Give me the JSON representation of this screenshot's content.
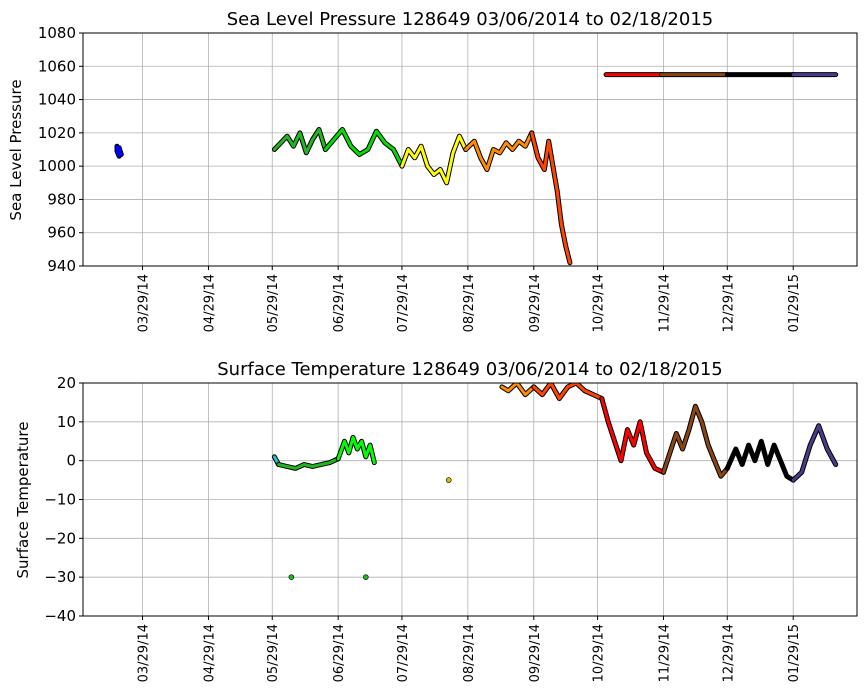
{
  "chart_data": [
    {
      "type": "line",
      "title": "Sea Level Pressure 128649  03/06/2014 to 02/18/2015",
      "ylabel": "Sea Level Pressure",
      "xlabel": "",
      "ylim": [
        940,
        1080
      ],
      "yticks": [
        940,
        960,
        980,
        1000,
        1020,
        1040,
        1060,
        1080
      ],
      "xlim": [
        "2014-03-01",
        "2015-02-28"
      ],
      "xticks": [
        {
          "date": "2014-03-29",
          "label": "03/29/14"
        },
        {
          "date": "2014-04-29",
          "label": "04/29/14"
        },
        {
          "date": "2014-05-29",
          "label": "05/29/14"
        },
        {
          "date": "2014-06-29",
          "label": "06/29/14"
        },
        {
          "date": "2014-07-29",
          "label": "07/29/14"
        },
        {
          "date": "2014-08-29",
          "label": "08/29/14"
        },
        {
          "date": "2014-09-29",
          "label": "09/29/14"
        },
        {
          "date": "2014-10-29",
          "label": "10/29/14"
        },
        {
          "date": "2014-11-29",
          "label": "11/29/14"
        },
        {
          "date": "2014-12-29",
          "label": "12/29/14"
        },
        {
          "date": "2015-01-29",
          "label": "01/29/15"
        }
      ],
      "grid": true,
      "series": [
        {
          "color": "#0000ff",
          "points": [
            [
              "2014-03-17",
              1012
            ],
            [
              "2014-03-17",
              1009
            ],
            [
              "2014-03-18",
              1006
            ],
            [
              "2014-03-18",
              1011
            ],
            [
              "2014-03-19",
              1007
            ]
          ]
        },
        {
          "color": "#22b422",
          "points": [
            [
              "2014-05-30",
              1010
            ],
            [
              "2014-06-02",
              1014
            ],
            [
              "2014-06-05",
              1018
            ],
            [
              "2014-06-08",
              1012
            ],
            [
              "2014-06-11",
              1020
            ],
            [
              "2014-06-14",
              1008
            ],
            [
              "2014-06-17",
              1016
            ],
            [
              "2014-06-20",
              1022
            ],
            [
              "2014-06-23",
              1010
            ]
          ]
        },
        {
          "color": "#00dd00",
          "points": [
            [
              "2014-06-23",
              1010
            ],
            [
              "2014-06-27",
              1016
            ],
            [
              "2014-07-01",
              1022
            ],
            [
              "2014-07-05",
              1012
            ],
            [
              "2014-07-09",
              1007
            ],
            [
              "2014-07-13",
              1010
            ],
            [
              "2014-07-17",
              1021
            ],
            [
              "2014-07-21",
              1014
            ],
            [
              "2014-07-25",
              1010
            ],
            [
              "2014-07-29",
              1000
            ]
          ]
        },
        {
          "color": "#ffff00",
          "points": [
            [
              "2014-07-29",
              1000
            ],
            [
              "2014-08-01",
              1010
            ],
            [
              "2014-08-04",
              1005
            ],
            [
              "2014-08-07",
              1012
            ],
            [
              "2014-08-10",
              1000
            ],
            [
              "2014-08-13",
              995
            ],
            [
              "2014-08-16",
              998
            ],
            [
              "2014-08-19",
              990
            ],
            [
              "2014-08-22",
              1008
            ],
            [
              "2014-08-25",
              1018
            ],
            [
              "2014-08-28",
              1010
            ]
          ]
        },
        {
          "color": "#ff8c00",
          "points": [
            [
              "2014-08-28",
              1010
            ],
            [
              "2014-09-01",
              1015
            ],
            [
              "2014-09-04",
              1005
            ],
            [
              "2014-09-07",
              998
            ],
            [
              "2014-09-10",
              1010
            ],
            [
              "2014-09-13",
              1008
            ],
            [
              "2014-09-16",
              1014
            ],
            [
              "2014-09-19",
              1010
            ],
            [
              "2014-09-22",
              1015
            ],
            [
              "2014-09-25",
              1012
            ],
            [
              "2014-09-28",
              1020
            ]
          ]
        },
        {
          "color": "#ff4500",
          "points": [
            [
              "2014-09-28",
              1020
            ],
            [
              "2014-10-01",
              1005
            ],
            [
              "2014-10-04",
              998
            ],
            [
              "2014-10-06",
              1015
            ],
            [
              "2014-10-08",
              1000
            ],
            [
              "2014-10-10",
              985
            ],
            [
              "2014-10-12",
              965
            ],
            [
              "2014-10-14",
              952
            ],
            [
              "2014-10-16",
              942
            ]
          ]
        },
        {
          "color": "#ff0000",
          "points": [
            [
              "2014-11-02",
              1055
            ],
            [
              "2014-11-28",
              1055
            ]
          ]
        },
        {
          "color": "#8b4513",
          "points": [
            [
              "2014-11-28",
              1055
            ],
            [
              "2014-12-12",
              1055
            ],
            [
              "2014-12-18",
              1055
            ],
            [
              "2014-12-29",
              1055
            ]
          ]
        },
        {
          "color": "#000000",
          "points": [
            [
              "2014-12-29",
              1055
            ],
            [
              "2015-01-29",
              1055
            ]
          ]
        },
        {
          "color": "#483d8b",
          "points": [
            [
              "2015-01-29",
              1055
            ],
            [
              "2015-02-18",
              1055
            ]
          ]
        }
      ]
    },
    {
      "type": "line",
      "title": "Surface Temperature 128649  03/06/2014 to 02/18/2015",
      "ylabel": "Surface Temperature",
      "xlabel": "",
      "ylim": [
        -40,
        20
      ],
      "yticks": [
        -40,
        -30,
        -20,
        -10,
        0,
        10,
        20
      ],
      "xlim": [
        "2014-03-01",
        "2015-02-28"
      ],
      "xticks": [
        {
          "date": "2014-03-29",
          "label": "03/29/14"
        },
        {
          "date": "2014-04-29",
          "label": "04/29/14"
        },
        {
          "date": "2014-05-29",
          "label": "05/29/14"
        },
        {
          "date": "2014-06-29",
          "label": "06/29/14"
        },
        {
          "date": "2014-07-29",
          "label": "07/29/14"
        },
        {
          "date": "2014-08-29",
          "label": "08/29/14"
        },
        {
          "date": "2014-09-29",
          "label": "09/29/14"
        },
        {
          "date": "2014-10-29",
          "label": "10/29/14"
        },
        {
          "date": "2014-11-29",
          "label": "11/29/14"
        },
        {
          "date": "2014-12-29",
          "label": "12/29/14"
        },
        {
          "date": "2015-01-29",
          "label": "01/29/15"
        }
      ],
      "grid": true,
      "series": [
        {
          "color": "#20c0c0",
          "points": [
            [
              "2014-05-30",
              1
            ],
            [
              "2014-06-01",
              -1
            ]
          ]
        },
        {
          "color": "#22b422",
          "points": [
            [
              "2014-06-01",
              -1
            ],
            [
              "2014-06-05",
              -1.5
            ],
            [
              "2014-06-09",
              -2
            ],
            [
              "2014-06-13",
              -1
            ],
            [
              "2014-06-17",
              -1.5
            ],
            [
              "2014-06-21",
              -1
            ],
            [
              "2014-06-25",
              -0.5
            ],
            [
              "2014-06-29",
              0.5
            ]
          ]
        },
        {
          "color": "#00ff00",
          "points": [
            [
              "2014-06-29",
              0.5
            ],
            [
              "2014-07-02",
              5
            ],
            [
              "2014-07-04",
              2
            ],
            [
              "2014-07-06",
              6
            ],
            [
              "2014-07-08",
              3
            ],
            [
              "2014-07-10",
              5
            ],
            [
              "2014-07-12",
              1
            ],
            [
              "2014-07-14",
              4
            ],
            [
              "2014-07-16",
              -0.5
            ]
          ]
        },
        {
          "color": "#ff8c00",
          "points": [
            [
              "2014-09-14",
              19
            ],
            [
              "2014-09-17",
              18
            ],
            [
              "2014-09-21",
              20
            ],
            [
              "2014-09-25",
              17
            ],
            [
              "2014-09-29",
              19
            ]
          ]
        },
        {
          "color": "#ff4500",
          "points": [
            [
              "2014-09-29",
              19
            ],
            [
              "2014-10-03",
              17
            ],
            [
              "2014-10-07",
              20
            ],
            [
              "2014-10-11",
              16
            ],
            [
              "2014-10-15",
              19
            ],
            [
              "2014-10-19",
              20
            ],
            [
              "2014-10-23",
              18
            ],
            [
              "2014-10-27",
              17
            ],
            [
              "2014-10-31",
              16
            ]
          ]
        },
        {
          "color": "#ff0000",
          "points": [
            [
              "2014-10-31",
              16
            ],
            [
              "2014-11-03",
              10
            ],
            [
              "2014-11-06",
              5
            ],
            [
              "2014-11-09",
              0
            ],
            [
              "2014-11-12",
              8
            ],
            [
              "2014-11-15",
              4
            ],
            [
              "2014-11-18",
              10
            ],
            [
              "2014-11-21",
              2
            ],
            [
              "2014-11-25",
              -2
            ],
            [
              "2014-11-29",
              -3
            ]
          ]
        },
        {
          "color": "#8b4513",
          "points": [
            [
              "2014-11-29",
              -3
            ],
            [
              "2014-12-02",
              2
            ],
            [
              "2014-12-05",
              7
            ],
            [
              "2014-12-08",
              3
            ],
            [
              "2014-12-11",
              8
            ],
            [
              "2014-12-14",
              14
            ],
            [
              "2014-12-17",
              10
            ],
            [
              "2014-12-20",
              4
            ],
            [
              "2014-12-23",
              0
            ],
            [
              "2014-12-26",
              -4
            ],
            [
              "2014-12-29",
              -2
            ]
          ]
        },
        {
          "color": "#000000",
          "points": [
            [
              "2014-12-29",
              -2
            ],
            [
              "2015-01-02",
              3
            ],
            [
              "2015-01-05",
              -1
            ],
            [
              "2015-01-08",
              4
            ],
            [
              "2015-01-11",
              0
            ],
            [
              "2015-01-14",
              5
            ],
            [
              "2015-01-17",
              -1
            ],
            [
              "2015-01-20",
              4
            ],
            [
              "2015-01-23",
              0
            ],
            [
              "2015-01-26",
              -4
            ],
            [
              "2015-01-29",
              -5
            ]
          ]
        },
        {
          "color": "#483d8b",
          "points": [
            [
              "2015-01-29",
              -5
            ],
            [
              "2015-02-02",
              -3
            ],
            [
              "2015-02-06",
              4
            ],
            [
              "2015-02-10",
              9
            ],
            [
              "2015-02-14",
              3
            ],
            [
              "2015-02-18",
              -1
            ]
          ]
        }
      ],
      "points": [
        {
          "color": "#22b422",
          "date": "2014-06-07",
          "value": -30
        },
        {
          "color": "#22b422",
          "date": "2014-07-12",
          "value": -30
        },
        {
          "color": "#c8c800",
          "date": "2014-08-20",
          "value": -5
        }
      ]
    }
  ]
}
